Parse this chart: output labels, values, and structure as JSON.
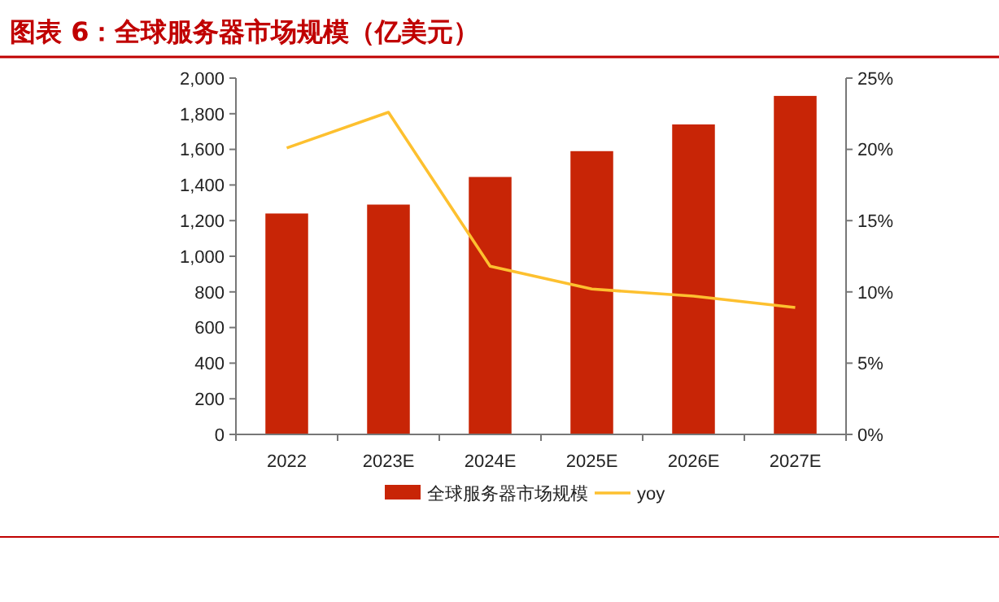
{
  "chart_data": {
    "type": "bar",
    "title": "图表 6：全球服务器市场规模（亿美元）",
    "categories": [
      "2022",
      "2023E",
      "2024E",
      "2025E",
      "2026E",
      "2027E"
    ],
    "series": [
      {
        "name": "全球服务器市场规模",
        "color": "#c82506",
        "values": [
          1240,
          1290,
          1445,
          1590,
          1740,
          1900
        ]
      },
      {
        "name": "yoy",
        "type": "line",
        "axis": "y2",
        "color": "#fdc02f",
        "values": [
          20.1,
          22.6,
          11.8,
          10.2,
          9.7,
          8.9
        ]
      }
    ],
    "ylim": [
      0,
      2000
    ],
    "yticks": [
      {
        "value": 0,
        "label": "0"
      },
      {
        "value": 200,
        "label": "200"
      },
      {
        "value": 400,
        "label": "400"
      },
      {
        "value": 600,
        "label": "600"
      },
      {
        "value": 800,
        "label": "800"
      },
      {
        "value": 1000,
        "label": "1,000"
      },
      {
        "value": 1200,
        "label": "1,200"
      },
      {
        "value": 1400,
        "label": "1,400"
      },
      {
        "value": 1600,
        "label": "1,600"
      },
      {
        "value": 1800,
        "label": "1,800"
      },
      {
        "value": 2000,
        "label": "2,000"
      }
    ],
    "y2lim": [
      0,
      25
    ],
    "y2ticks": [
      {
        "value": 0,
        "label": "0%"
      },
      {
        "value": 5,
        "label": "5%"
      },
      {
        "value": 10,
        "label": "10%"
      },
      {
        "value": 15,
        "label": "15%"
      },
      {
        "value": 20,
        "label": "20%"
      },
      {
        "value": 25,
        "label": "25%"
      }
    ],
    "grid": false,
    "legend": "bottom",
    "marker": "none"
  }
}
